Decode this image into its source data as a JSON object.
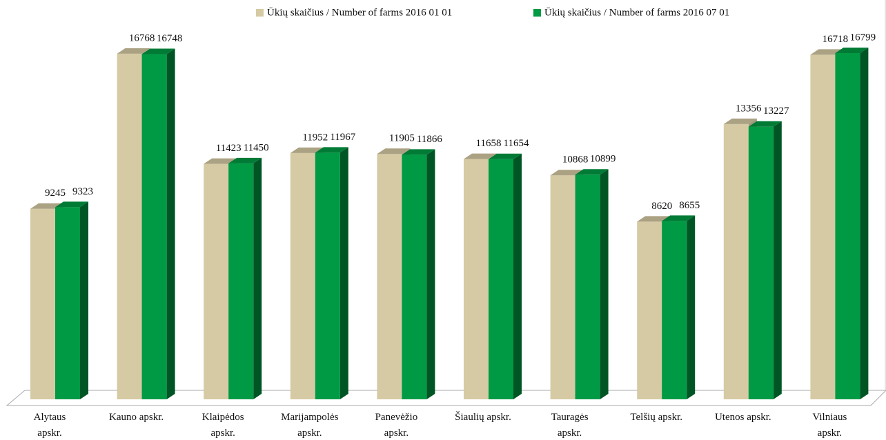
{
  "chart_data": {
    "type": "bar3d",
    "categories": [
      "Alytaus apskr.",
      "Kauno apskr.",
      "Klaipėdos apskr.",
      "Marijampolės apskr.",
      "Panevėžio apskr.",
      "Šiaulių apskr.",
      "Tauragės apskr.",
      "Telšių apskr.",
      "Utenos apskr.",
      "Vilniaus apskr."
    ],
    "series": [
      {
        "name": "Ūkių skaičius / Number of farms 2016 01 01",
        "color": "#d6caa4",
        "values": [
          9245,
          16768,
          11423,
          11952,
          11905,
          11658,
          10868,
          8620,
          13356,
          16718
        ]
      },
      {
        "name": "Ūkių skaičius / Number of farms 2016 07 01",
        "color": "#009a44",
        "values": [
          9323,
          16748,
          11450,
          11967,
          11866,
          11654,
          10899,
          8655,
          13227,
          16799
        ]
      }
    ],
    "ylim": [
      0,
      17000
    ],
    "legend": "top"
  }
}
